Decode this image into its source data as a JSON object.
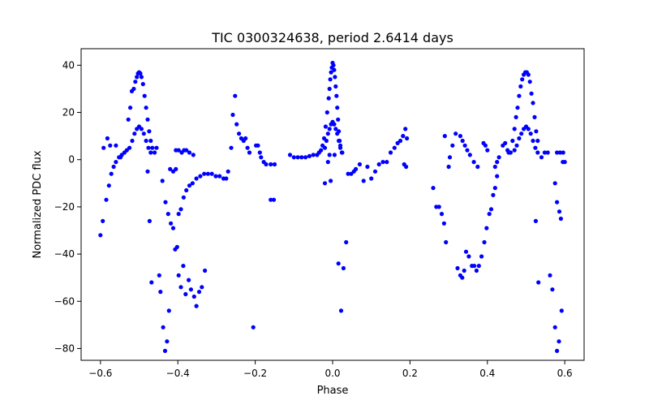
{
  "chart_data": {
    "type": "scatter",
    "title": "TIC 0300324638, period 2.6414 days",
    "xlabel": "Phase",
    "ylabel": "Normalized PDC flux",
    "xlim": [
      -0.65,
      0.65
    ],
    "ylim": [
      -85,
      47
    ],
    "x_ticks": [
      -0.6,
      -0.4,
      -0.2,
      0.0,
      0.2,
      0.4,
      0.6
    ],
    "x_tick_labels": [
      "−0.6",
      "−0.4",
      "−0.2",
      "0.0",
      "0.2",
      "0.4",
      "0.6"
    ],
    "y_ticks": [
      -80,
      -60,
      -40,
      -20,
      0,
      20,
      40
    ],
    "y_tick_labels": [
      "−80",
      "−60",
      "−40",
      "−20",
      "0",
      "20",
      "40"
    ],
    "grid": false,
    "marker_color": "#0000ff",
    "series": [
      {
        "points": [
          [
            -0.6,
            -32
          ],
          [
            -0.594,
            -26
          ],
          [
            -0.585,
            -17
          ],
          [
            -0.578,
            -11
          ],
          [
            -0.572,
            -6
          ],
          [
            -0.566,
            -3
          ],
          [
            -0.56,
            -1
          ],
          [
            -0.552,
            1
          ],
          [
            -0.545,
            2
          ],
          [
            -0.538,
            3
          ],
          [
            -0.532,
            4
          ],
          [
            -0.528,
            17
          ],
          [
            -0.523,
            22
          ],
          [
            -0.519,
            29
          ],
          [
            -0.514,
            30
          ],
          [
            -0.51,
            33
          ],
          [
            -0.506,
            35
          ],
          [
            -0.503,
            36.5
          ],
          [
            -0.5,
            37
          ],
          [
            -0.497,
            36.5
          ],
          [
            -0.494,
            35
          ],
          [
            -0.49,
            32
          ],
          [
            -0.486,
            27
          ],
          [
            -0.482,
            22
          ],
          [
            -0.478,
            17
          ],
          [
            -0.474,
            12
          ],
          [
            -0.47,
            8
          ],
          [
            -0.466,
            5
          ],
          [
            -0.46,
            3
          ],
          [
            -0.525,
            5
          ],
          [
            -0.518,
            8
          ],
          [
            -0.512,
            11
          ],
          [
            -0.506,
            13
          ],
          [
            -0.5,
            14
          ],
          [
            -0.494,
            13
          ],
          [
            -0.488,
            11
          ],
          [
            -0.482,
            8
          ],
          [
            -0.476,
            5
          ],
          [
            -0.47,
            3
          ],
          [
            -0.592,
            5
          ],
          [
            -0.582,
            9
          ],
          [
            -0.575,
            6
          ],
          [
            -0.56,
            6
          ],
          [
            -0.548,
            1
          ],
          [
            -0.478,
            -5
          ],
          [
            -0.473,
            -26
          ],
          [
            -0.468,
            -52
          ],
          [
            -0.455,
            5
          ],
          [
            -0.448,
            -49
          ],
          [
            -0.445,
            -56
          ],
          [
            -0.438,
            -71
          ],
          [
            -0.433,
            -81
          ],
          [
            -0.428,
            -77
          ],
          [
            -0.423,
            -64
          ],
          [
            -0.44,
            -9
          ],
          [
            -0.432,
            -18
          ],
          [
            -0.425,
            -23
          ],
          [
            -0.418,
            -27
          ],
          [
            -0.412,
            -29
          ],
          [
            -0.407,
            -38
          ],
          [
            -0.402,
            -37
          ],
          [
            -0.398,
            -49
          ],
          [
            -0.392,
            -54
          ],
          [
            -0.386,
            -45
          ],
          [
            -0.38,
            -57
          ],
          [
            -0.372,
            -51
          ],
          [
            -0.366,
            -55
          ],
          [
            -0.358,
            -58
          ],
          [
            -0.352,
            -62
          ],
          [
            -0.345,
            -56
          ],
          [
            -0.338,
            -54
          ],
          [
            -0.33,
            -47
          ],
          [
            -0.42,
            -4
          ],
          [
            -0.412,
            -5
          ],
          [
            -0.405,
            -4
          ],
          [
            -0.398,
            -23
          ],
          [
            -0.392,
            -21
          ],
          [
            -0.385,
            -16
          ],
          [
            -0.378,
            -13
          ],
          [
            -0.37,
            -11
          ],
          [
            -0.362,
            -10
          ],
          [
            -0.352,
            -8
          ],
          [
            -0.342,
            -7
          ],
          [
            -0.332,
            -6
          ],
          [
            -0.322,
            -6
          ],
          [
            -0.312,
            -6
          ],
          [
            -0.302,
            -7
          ],
          [
            -0.292,
            -7
          ],
          [
            -0.282,
            -8
          ],
          [
            -0.405,
            4
          ],
          [
            -0.398,
            4
          ],
          [
            -0.39,
            3
          ],
          [
            -0.384,
            4
          ],
          [
            -0.378,
            4
          ],
          [
            -0.37,
            3
          ],
          [
            -0.36,
            2
          ],
          [
            -0.252,
            27
          ],
          [
            -0.258,
            19
          ],
          [
            -0.248,
            15
          ],
          [
            -0.242,
            11
          ],
          [
            -0.236,
            9
          ],
          [
            -0.23,
            8
          ],
          [
            -0.225,
            9
          ],
          [
            -0.22,
            5
          ],
          [
            -0.215,
            3
          ],
          [
            -0.262,
            5
          ],
          [
            -0.27,
            -5
          ],
          [
            -0.275,
            -8
          ],
          [
            -0.205,
            -71
          ],
          [
            -0.198,
            6
          ],
          [
            -0.193,
            6
          ],
          [
            -0.188,
            3
          ],
          [
            -0.185,
            1
          ],
          [
            -0.178,
            -1
          ],
          [
            -0.172,
            -2
          ],
          [
            -0.16,
            -2
          ],
          [
            -0.15,
            -2
          ],
          [
            -0.16,
            -17
          ],
          [
            -0.152,
            -17
          ],
          [
            -0.11,
            2
          ],
          [
            -0.1,
            1
          ],
          [
            -0.09,
            1
          ],
          [
            -0.08,
            1
          ],
          [
            -0.07,
            1
          ],
          [
            -0.06,
            1.5
          ],
          [
            -0.05,
            2
          ],
          [
            -0.04,
            2
          ],
          [
            -0.035,
            3
          ],
          [
            -0.02,
            -10
          ],
          [
            -0.012,
            -1
          ],
          [
            -0.008,
            2
          ],
          [
            -0.03,
            4
          ],
          [
            -0.026,
            6
          ],
          [
            -0.022,
            9
          ],
          [
            -0.018,
            14
          ],
          [
            -0.014,
            20
          ],
          [
            -0.01,
            26
          ],
          [
            -0.008,
            30
          ],
          [
            -0.006,
            34
          ],
          [
            -0.004,
            37
          ],
          [
            -0.002,
            39
          ],
          [
            0.0,
            41
          ],
          [
            0.002,
            40
          ],
          [
            0.004,
            38
          ],
          [
            0.006,
            35
          ],
          [
            0.008,
            31
          ],
          [
            0.01,
            27
          ],
          [
            0.012,
            22
          ],
          [
            0.014,
            17
          ],
          [
            0.016,
            12
          ],
          [
            0.018,
            8
          ],
          [
            0.02,
            5
          ],
          [
            0.024,
            3
          ],
          [
            -0.02,
            5
          ],
          [
            -0.016,
            8
          ],
          [
            -0.012,
            11
          ],
          [
            -0.008,
            13
          ],
          [
            -0.004,
            15
          ],
          [
            0.0,
            16
          ],
          [
            0.004,
            15
          ],
          [
            0.008,
            13
          ],
          [
            0.012,
            11
          ],
          [
            0.016,
            8
          ],
          [
            0.02,
            6
          ],
          [
            0.025,
            3
          ],
          [
            -0.005,
            -9
          ],
          [
            0.005,
            2
          ],
          [
            0.015,
            -44
          ],
          [
            0.022,
            -64
          ],
          [
            0.028,
            -46
          ],
          [
            0.035,
            -35
          ],
          [
            0.04,
            -6
          ],
          [
            0.048,
            -6
          ],
          [
            0.055,
            -5
          ],
          [
            0.06,
            -4
          ],
          [
            0.07,
            -2
          ],
          [
            0.08,
            -9
          ],
          [
            0.09,
            -3
          ],
          [
            0.1,
            -8
          ],
          [
            0.11,
            -5
          ],
          [
            0.12,
            -2
          ],
          [
            0.13,
            -1
          ],
          [
            0.14,
            -1
          ],
          [
            0.15,
            3
          ],
          [
            0.16,
            5
          ],
          [
            0.168,
            7
          ],
          [
            0.175,
            8
          ],
          [
            0.182,
            10
          ],
          [
            0.188,
            13
          ],
          [
            0.192,
            9
          ],
          [
            0.185,
            -2
          ],
          [
            0.19,
            -3
          ],
          [
            0.26,
            -12
          ],
          [
            0.268,
            -20
          ],
          [
            0.275,
            -20
          ],
          [
            0.282,
            -23
          ],
          [
            0.288,
            -27
          ],
          [
            0.293,
            -35
          ],
          [
            0.3,
            -3
          ],
          [
            0.29,
            10
          ],
          [
            0.303,
            1
          ],
          [
            0.31,
            6
          ],
          [
            0.318,
            11
          ],
          [
            0.323,
            -46
          ],
          [
            0.33,
            -49
          ],
          [
            0.335,
            -50
          ],
          [
            0.34,
            -47
          ],
          [
            0.345,
            -39
          ],
          [
            0.352,
            -41
          ],
          [
            0.36,
            -45
          ],
          [
            0.366,
            -45
          ],
          [
            0.372,
            -47
          ],
          [
            0.378,
            -45
          ],
          [
            0.385,
            -41
          ],
          [
            0.392,
            -35
          ],
          [
            0.398,
            -29
          ],
          [
            0.405,
            -23
          ],
          [
            0.41,
            -21
          ],
          [
            0.415,
            -15
          ],
          [
            0.42,
            -12
          ],
          [
            0.425,
            -7
          ],
          [
            0.33,
            10
          ],
          [
            0.336,
            8
          ],
          [
            0.342,
            6
          ],
          [
            0.348,
            4
          ],
          [
            0.355,
            2
          ],
          [
            0.365,
            -1
          ],
          [
            0.375,
            -3
          ],
          [
            0.39,
            7
          ],
          [
            0.395,
            6
          ],
          [
            0.4,
            4
          ],
          [
            0.42,
            -3
          ],
          [
            0.425,
            -1
          ],
          [
            0.43,
            1
          ],
          [
            0.44,
            6
          ],
          [
            0.446,
            7
          ],
          [
            0.452,
            4
          ],
          [
            0.455,
            3
          ],
          [
            0.46,
            3
          ],
          [
            0.465,
            8
          ],
          [
            0.47,
            13
          ],
          [
            0.474,
            18
          ],
          [
            0.478,
            22
          ],
          [
            0.482,
            27
          ],
          [
            0.486,
            31
          ],
          [
            0.49,
            34
          ],
          [
            0.494,
            36
          ],
          [
            0.498,
            37
          ],
          [
            0.502,
            37
          ],
          [
            0.506,
            36
          ],
          [
            0.51,
            33
          ],
          [
            0.514,
            28
          ],
          [
            0.518,
            24
          ],
          [
            0.522,
            18
          ],
          [
            0.526,
            12
          ],
          [
            0.53,
            8
          ],
          [
            0.47,
            4
          ],
          [
            0.476,
            6
          ],
          [
            0.482,
            9
          ],
          [
            0.488,
            11
          ],
          [
            0.494,
            13
          ],
          [
            0.5,
            14
          ],
          [
            0.506,
            13
          ],
          [
            0.512,
            11
          ],
          [
            0.518,
            8
          ],
          [
            0.524,
            5
          ],
          [
            0.53,
            3
          ],
          [
            0.525,
            -26
          ],
          [
            0.532,
            -52
          ],
          [
            0.54,
            1
          ],
          [
            0.548,
            3
          ],
          [
            0.556,
            3
          ],
          [
            0.562,
            -49
          ],
          [
            0.568,
            -55
          ],
          [
            0.575,
            -71
          ],
          [
            0.58,
            -81
          ],
          [
            0.585,
            -77
          ],
          [
            0.592,
            -64
          ],
          [
            0.575,
            -10
          ],
          [
            0.58,
            -18
          ],
          [
            0.586,
            -22
          ],
          [
            0.59,
            -25
          ],
          [
            0.595,
            -1
          ],
          [
            0.6,
            -1
          ],
          [
            0.58,
            3
          ],
          [
            0.588,
            3
          ],
          [
            0.596,
            3
          ]
        ]
      }
    ]
  }
}
